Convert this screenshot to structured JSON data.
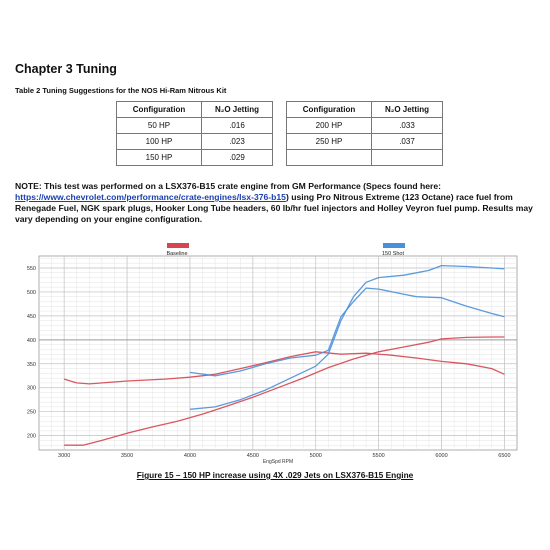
{
  "heading": "Chapter 3 Tuning",
  "table": {
    "caption": "Table 2 Tuning Suggestions for the NOS Hi-Ram Nitrous Kit",
    "headers": [
      "Configuration",
      "N₂O Jetting"
    ],
    "left_rows": [
      [
        "50 HP",
        ".016"
      ],
      [
        "100 HP",
        ".023"
      ],
      [
        "150 HP",
        ".029"
      ]
    ],
    "right_rows": [
      [
        "200 HP",
        ".033"
      ],
      [
        "250 HP",
        ".037"
      ],
      [
        "",
        ""
      ]
    ]
  },
  "note": {
    "prefix": "NOTE: This test was performed on a LSX376-B15 crate engine from GM Performance (Specs found here: ",
    "link": "https://www.chevrolet.com/performance/crate-engines/lsx-376-b15",
    "suffix": ") using Pro Nitrous Extreme (123 Octane) race fuel from Renegade Fuel, NGK spark plugs, Hooker Long Tube headers, 60 lb/hr fuel injectors and Holley Veyron fuel pump.  Results may vary depending on your engine configuration."
  },
  "figure_caption": "Figure 15 – 150 HP increase using 4X .029 Jets on LSX376-B15 Engine",
  "chart_data": {
    "type": "line",
    "xlabel": "EngSpd RPM",
    "ylabel": "",
    "xlim": [
      2800,
      6600
    ],
    "ylim": [
      170,
      575
    ],
    "x_ticks": [
      3000,
      3500,
      4000,
      4500,
      5000,
      5500,
      6000,
      6500
    ],
    "y_ticks": [
      200,
      250,
      300,
      350,
      400,
      450,
      500,
      550
    ],
    "grid": true,
    "legend": [
      {
        "name": "Baseline",
        "color": "#d64550"
      },
      {
        "name": "150 Shot",
        "color": "#4a90d9"
      }
    ],
    "series": [
      {
        "name": "Baseline HP",
        "legend": "Baseline",
        "color": "#d64550",
        "x": [
          3000,
          3150,
          3300,
          3500,
          3700,
          3900,
          4100,
          4300,
          4500,
          4700,
          4900,
          5100,
          5300,
          5500,
          5700,
          5900,
          6000,
          6200,
          6400,
          6500
        ],
        "y": [
          180,
          180,
          190,
          205,
          218,
          230,
          245,
          262,
          280,
          300,
          320,
          342,
          360,
          375,
          385,
          395,
          402,
          405,
          406,
          406
        ]
      },
      {
        "name": "Baseline TQ",
        "legend": "Baseline",
        "color": "#d64550",
        "x": [
          3000,
          3100,
          3200,
          3500,
          3800,
          4000,
          4200,
          4400,
          4600,
          4800,
          5000,
          5200,
          5400,
          5600,
          5800,
          6000,
          6200,
          6400,
          6500
        ],
        "y": [
          318,
          310,
          308,
          314,
          318,
          322,
          328,
          340,
          352,
          365,
          375,
          370,
          372,
          368,
          362,
          355,
          350,
          340,
          328
        ]
      },
      {
        "name": "150 Shot HP",
        "legend": "150 Shot",
        "color": "#4a90d9",
        "x": [
          4000,
          4200,
          4400,
          4600,
          4800,
          5000,
          5100,
          5200,
          5300,
          5400,
          5500,
          5700,
          5800,
          5900,
          6000,
          6200,
          6400,
          6500
        ],
        "y": [
          255,
          260,
          275,
          295,
          320,
          345,
          370,
          440,
          490,
          520,
          530,
          535,
          540,
          545,
          555,
          553,
          550,
          548
        ]
      },
      {
        "name": "150 Shot TQ",
        "legend": "150 Shot",
        "color": "#4a90d9",
        "x": [
          4000,
          4200,
          4400,
          4600,
          4800,
          5000,
          5100,
          5200,
          5300,
          5400,
          5500,
          5700,
          5800,
          6000,
          6200,
          6400,
          6500
        ],
        "y": [
          332,
          325,
          335,
          350,
          362,
          368,
          378,
          448,
          480,
          508,
          506,
          495,
          490,
          488,
          470,
          455,
          448
        ]
      }
    ]
  }
}
